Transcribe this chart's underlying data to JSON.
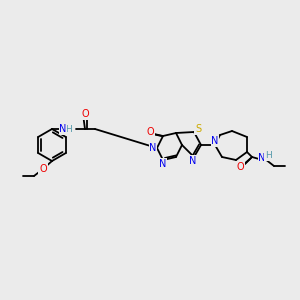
{
  "bg_color": "#ebebeb",
  "bond_color": "#000000",
  "atom_colors": {
    "N": "#0000ee",
    "NH": "#5599aa",
    "O": "#ee0000",
    "S": "#ccaa00",
    "C": "#000000"
  },
  "figsize": [
    3.0,
    3.0
  ],
  "dpi": 100
}
